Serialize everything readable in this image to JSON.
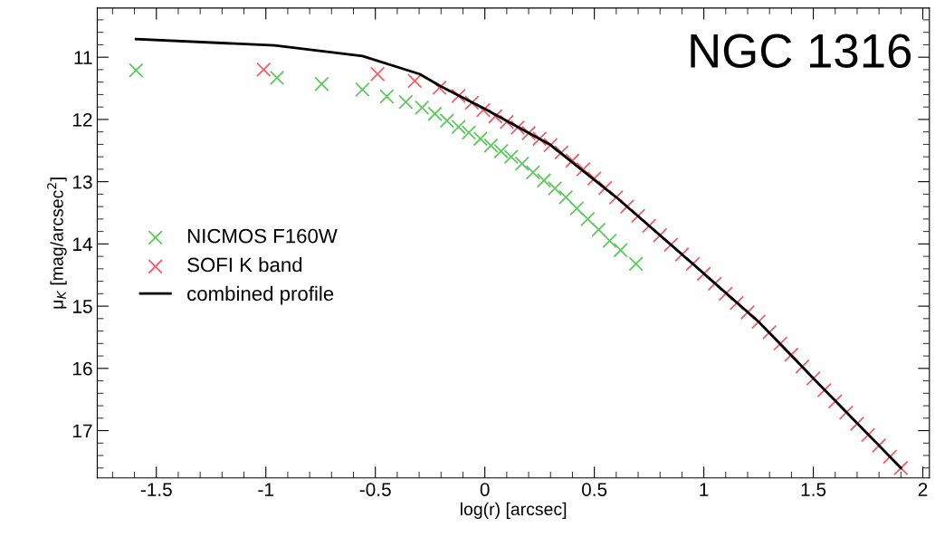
{
  "chart_data": {
    "type": "scatter",
    "xlabel": "log(r) [arcsec]",
    "ylabel": "μ$_{K}$ [mag/arcsec$^{2}$]",
    "annotations": [
      "NGC 1316"
    ],
    "xlim": [
      -1.77,
      2.03
    ],
    "ylim": [
      17.76,
      10.21
    ],
    "xticks": [
      -1.5,
      -1,
      -0.5,
      0,
      0.5,
      1,
      1.5,
      2
    ],
    "yticks": [
      11,
      12,
      13,
      14,
      15,
      16,
      17
    ],
    "grid": false,
    "legend": "bottom left",
    "marker": "cross",
    "series": [
      {
        "name": "NICMOS F160W",
        "color": "#5ec95e",
        "x": [
          -1.593,
          -0.949,
          -0.745,
          -0.559,
          -0.448,
          -0.361,
          -0.287,
          -0.228,
          -0.173,
          -0.12,
          -0.073,
          -0.02,
          0.028,
          0.074,
          0.12,
          0.17,
          0.22,
          0.27,
          0.32,
          0.37,
          0.42,
          0.47,
          0.52,
          0.57,
          0.62,
          0.69
        ],
        "values": [
          11.21,
          11.33,
          11.43,
          11.52,
          11.63,
          11.72,
          11.81,
          11.91,
          12.02,
          12.12,
          12.21,
          12.31,
          12.42,
          12.51,
          12.6,
          12.71,
          12.85,
          12.98,
          13.11,
          13.25,
          13.43,
          13.6,
          13.77,
          13.95,
          14.1,
          14.32
        ]
      },
      {
        "name": "SOFI K band",
        "color": "#f0606a",
        "x": [
          -1.01,
          -0.49,
          -0.32,
          -0.207,
          -0.12,
          -0.059,
          -0.007,
          0.048,
          0.1,
          0.15,
          0.2,
          0.25,
          0.3,
          0.35,
          0.4,
          0.45,
          0.5,
          0.55,
          0.6,
          0.65,
          0.7,
          0.75,
          0.8,
          0.85,
          0.9,
          0.95,
          1.0,
          1.05,
          1.1,
          1.15,
          1.2,
          1.25,
          1.3,
          1.35,
          1.4,
          1.45,
          1.5,
          1.55,
          1.6,
          1.65,
          1.7,
          1.75,
          1.8,
          1.85,
          1.9
        ],
        "values": [
          11.2,
          11.27,
          11.38,
          11.49,
          11.62,
          11.73,
          11.85,
          11.95,
          12.04,
          12.13,
          12.22,
          12.31,
          12.41,
          12.53,
          12.66,
          12.8,
          12.95,
          13.1,
          13.25,
          13.4,
          13.55,
          13.71,
          13.86,
          14.01,
          14.17,
          14.32,
          14.48,
          14.64,
          14.8,
          14.95,
          15.1,
          15.25,
          15.42,
          15.6,
          15.78,
          15.97,
          16.16,
          16.35,
          16.53,
          16.71,
          16.89,
          17.07,
          17.24,
          17.42,
          17.6
        ]
      },
      {
        "name": "combined profile",
        "type": "line",
        "color": "#000000",
        "marker": "none",
        "line_style": "solid",
        "x": [
          -1.593,
          -0.96,
          -0.559,
          -0.298,
          -0.2,
          0.0,
          0.3,
          0.6,
          0.95,
          1.25,
          1.5,
          1.9
        ],
        "values": [
          10.71,
          10.81,
          10.98,
          11.27,
          11.47,
          11.83,
          12.41,
          13.25,
          14.32,
          15.25,
          16.16,
          17.6
        ]
      }
    ]
  }
}
